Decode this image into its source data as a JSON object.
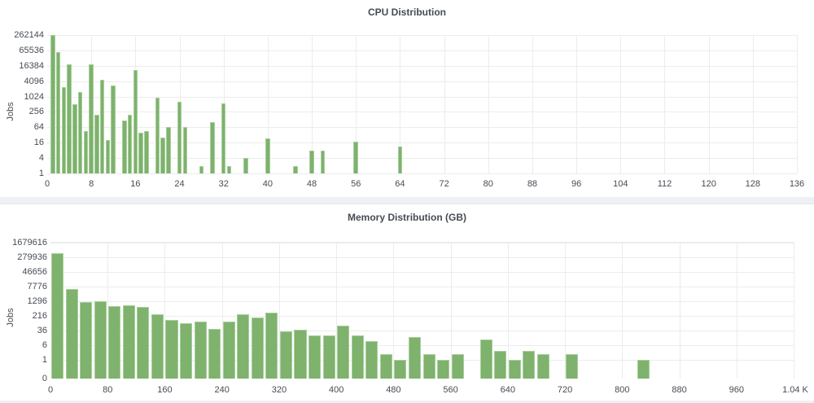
{
  "colors": {
    "bar": "#7eb26d",
    "grid": "#ececec",
    "text": "#464c54",
    "background": "#eef0f3"
  },
  "chart_data": [
    {
      "type": "bar",
      "title": "CPU Distribution",
      "xlabel": "",
      "ylabel": "Jobs",
      "yscale": "log4",
      "xlim": [
        0,
        136
      ],
      "ylim": [
        1,
        262144
      ],
      "grid": true,
      "legend": "none",
      "x_ticks": [
        "0",
        "8",
        "16",
        "24",
        "32",
        "40",
        "48",
        "56",
        "64",
        "72",
        "80",
        "88",
        "96",
        "104",
        "112",
        "120",
        "128",
        "136"
      ],
      "y_ticks": [
        "262144",
        "65536",
        "16384",
        "4096",
        "1024",
        "256",
        "64",
        "16",
        "4",
        "1"
      ],
      "x": [
        1,
        2,
        3,
        4,
        5,
        6,
        7,
        8,
        9,
        10,
        11,
        12,
        14,
        15,
        16,
        17,
        18,
        20,
        21,
        22,
        24,
        25,
        28,
        30,
        32,
        33,
        36,
        40,
        45,
        48,
        50,
        56,
        64
      ],
      "values": [
        270000,
        57000,
        2400,
        19000,
        520,
        1560,
        46,
        19000,
        200,
        4600,
        20,
        2700,
        120,
        195,
        11500,
        40,
        45,
        930,
        25,
        65,
        650,
        68,
        2,
        100,
        540,
        2,
        4,
        23,
        2,
        8,
        8,
        18,
        11
      ]
    },
    {
      "type": "bar",
      "title": "Memory Distribution (GB)",
      "xlabel": "",
      "ylabel": "Jobs",
      "yscale": "log6",
      "xlim": [
        0,
        1040
      ],
      "ylim": [
        0,
        1679616
      ],
      "grid": true,
      "legend": "none",
      "bin_width": 20,
      "x_ticks": [
        "0",
        "80",
        "160",
        "240",
        "320",
        "400",
        "480",
        "560",
        "640",
        "720",
        "800",
        "880",
        "960",
        "1.04 K"
      ],
      "y_ticks": [
        "1679616",
        "279936",
        "46656",
        "7776",
        "1296",
        "216",
        "36",
        "6",
        "1",
        "0"
      ],
      "x": [
        0,
        20,
        40,
        60,
        80,
        100,
        120,
        140,
        160,
        180,
        200,
        220,
        240,
        260,
        280,
        300,
        320,
        340,
        360,
        380,
        400,
        420,
        440,
        460,
        480,
        500,
        520,
        540,
        560,
        600,
        620,
        640,
        660,
        680,
        720,
        820
      ],
      "values": [
        430000,
        5500,
        1130,
        1270,
        690,
        790,
        660,
        255,
        130,
        86,
        105,
        43,
        107,
        270,
        170,
        330,
        32,
        40,
        21,
        21,
        64,
        21,
        10,
        2,
        1,
        16,
        2,
        1,
        2,
        12,
        3,
        1,
        3,
        2,
        2,
        1
      ]
    }
  ]
}
